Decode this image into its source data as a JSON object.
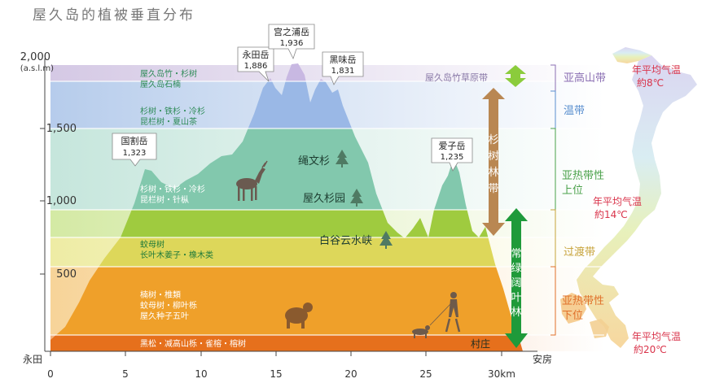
{
  "title": "屋久岛的植被垂直分布",
  "y_axis": {
    "unit_line1": "2,000",
    "unit_line2": "(a.s.l.m)",
    "ticks": [
      "1,500",
      "1,000",
      "500"
    ]
  },
  "x_axis": {
    "left_place": "永田",
    "right_place": "安房",
    "ticks": [
      "0",
      "5",
      "10",
      "15",
      "20",
      "25",
      "30km"
    ]
  },
  "peaks": [
    {
      "name": "国割岳",
      "elev": "1,323"
    },
    {
      "name": "永田岳",
      "elev": "1,886"
    },
    {
      "name": "宫之浦岳",
      "elev": "1,936"
    },
    {
      "name": "黑味岳",
      "elev": "1,831"
    },
    {
      "name": "爱子岳",
      "elev": "1,235"
    }
  ],
  "bands": [
    {
      "line1": "屋久岛竹・杉树",
      "line2": "屋久岛石楠"
    },
    {
      "line1": "杉树・铁杉・冷杉",
      "line2": "昆栏树・夏山茶"
    },
    {
      "line1": "杉树・铁杉・冷杉",
      "line2": "昆栏树・针枞"
    },
    {
      "line1": "蚊母树",
      "line2": "长叶木姜子・橡木类"
    },
    {
      "line1": "楠树・椎類",
      "line2": "蚊母树・柳叶栎",
      "line3": "屋久种子五叶"
    },
    {
      "line1": "黑松・减高山栎・雀榕・榕树"
    }
  ],
  "places": {
    "bamboo_grass": "屋久岛竹草原带",
    "jomon": "绳文杉",
    "yakusugi_land": "屋久杉园",
    "shiratani": "白谷云水峡",
    "village": "村庄"
  },
  "cedar_belt": "杉树林带",
  "evergreen_belt": "常绿阔叶林带",
  "zones": {
    "subalpine": "亚高山带",
    "temperate": "温带",
    "subtropical_upper_1": "亚热带性",
    "subtropical_upper_2": "上位",
    "transition": "过渡带",
    "subtropical_lower_1": "亚热带性",
    "subtropical_lower_2": "下位"
  },
  "temps": [
    {
      "line1": "年平均气温",
      "line2": "約8℃"
    },
    {
      "line1": "年平均气温",
      "line2": "約14℃"
    },
    {
      "line1": "年平均气温",
      "line2": "約20℃"
    }
  ],
  "colors": {
    "band_subalpine": "#cdbfe0",
    "band_temperate": "#a9c3e8",
    "band_cedar": "#8ecfb6",
    "band_green": "#a6cf4c",
    "band_yellow": "#e3dd68",
    "band_orange": "#f0a530",
    "band_base": "#e8761f",
    "zone_text_purple": "#8b6fb3",
    "zone_text_blue": "#5a8fcf",
    "zone_text_green": "#4aa14a",
    "zone_text_gold": "#c7a33a",
    "zone_text_orange": "#e0702a",
    "temp_red": "#d9334a",
    "brown_arrow": "#b98752",
    "green_arrow": "#1f9a3a"
  }
}
